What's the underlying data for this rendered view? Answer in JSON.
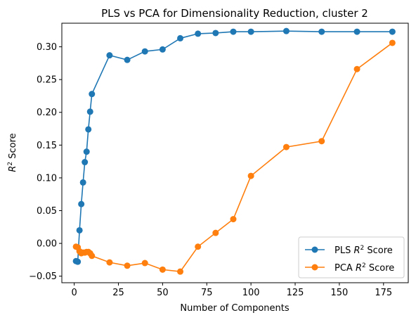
{
  "chart_data": {
    "type": "line",
    "title": "PLS vs PCA for Dimensionality Reduction, cluster 2",
    "xlabel": "Number of Components",
    "ylabel": "R² Score",
    "xlim": [
      -7,
      189
    ],
    "ylim": [
      -0.06,
      0.336
    ],
    "xticks": [
      0,
      25,
      50,
      75,
      100,
      125,
      150,
      175
    ],
    "yticks": [
      -0.05,
      0.0,
      0.05,
      0.1,
      0.15,
      0.2,
      0.25,
      0.3
    ],
    "ytick_labels": [
      "−0.05",
      "0.00",
      "0.05",
      "0.10",
      "0.15",
      "0.20",
      "0.25",
      "0.30"
    ],
    "grid": false,
    "legend_position": "lower-right",
    "series": [
      {
        "name": "PLS R² Score",
        "color": "#1f77b4",
        "x": [
          1,
          2,
          3,
          4,
          5,
          6,
          7,
          8,
          9,
          10,
          20,
          30,
          40,
          50,
          60,
          70,
          80,
          90,
          100,
          120,
          140,
          160,
          180
        ],
        "y": [
          -0.027,
          -0.028,
          0.02,
          0.06,
          0.093,
          0.124,
          0.14,
          0.174,
          0.201,
          0.228,
          0.287,
          0.28,
          0.293,
          0.296,
          0.313,
          0.32,
          0.321,
          0.323,
          0.323,
          0.324,
          0.323,
          0.323,
          0.323
        ]
      },
      {
        "name": "PCA R² Score",
        "color": "#ff7f0e",
        "x": [
          1,
          2,
          3,
          4,
          5,
          6,
          7,
          8,
          9,
          10,
          20,
          30,
          40,
          50,
          60,
          70,
          80,
          90,
          100,
          120,
          140,
          160,
          180
        ],
        "y": [
          -0.005,
          -0.006,
          -0.012,
          -0.015,
          -0.014,
          -0.014,
          -0.013,
          -0.013,
          -0.015,
          -0.019,
          -0.029,
          -0.034,
          -0.03,
          -0.04,
          -0.043,
          -0.005,
          0.016,
          0.037,
          0.103,
          0.147,
          0.156,
          0.266,
          0.306
        ]
      }
    ]
  }
}
